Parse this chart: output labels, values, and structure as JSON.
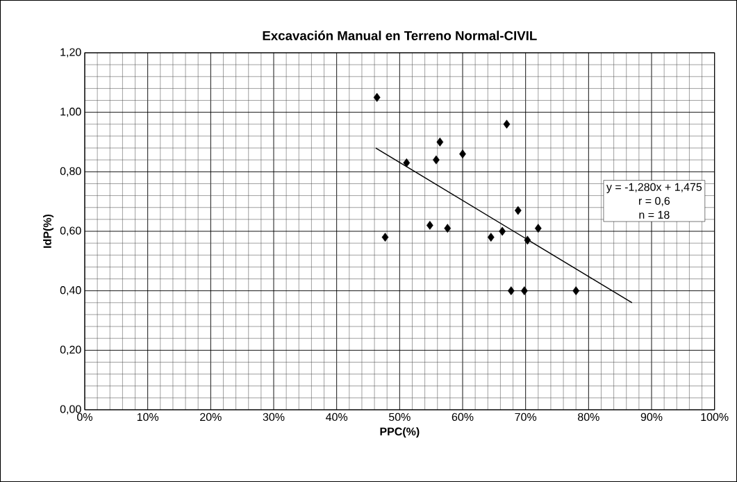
{
  "chart_data": {
    "type": "scatter",
    "title": "Excavación Manual en Terreno Normal-CIVIL",
    "xlabel": "PPC(%)",
    "ylabel": "IdP(%)",
    "series": [
      {
        "color": "#000000",
        "marker": "diamond",
        "x": [
          46.4,
          67.0,
          56.4,
          60.0,
          55.8,
          51.1,
          68.8,
          54.8,
          57.6,
          47.7,
          64.5,
          66.3,
          72.0,
          70.3,
          67.7,
          69.8,
          78.0
        ],
        "values": [
          1.05,
          0.96,
          0.9,
          0.86,
          0.84,
          0.83,
          0.67,
          0.62,
          0.61,
          0.58,
          0.58,
          0.6,
          0.61,
          0.57,
          0.4,
          0.4,
          0.4
        ]
      },
      {
        "type": "line",
        "color": "#000000",
        "x": [
          46.2,
          86.9
        ],
        "values": [
          0.88,
          0.36
        ]
      }
    ],
    "xlim": [
      0,
      100
    ],
    "ylim": [
      0,
      1.2
    ],
    "xticks": [
      {
        "value": 0,
        "label": "0%"
      },
      {
        "value": 10,
        "label": "10%"
      },
      {
        "value": 20,
        "label": "20%"
      },
      {
        "value": 30,
        "label": "30%"
      },
      {
        "value": 40,
        "label": "40%"
      },
      {
        "value": 50,
        "label": "50%"
      },
      {
        "value": 60,
        "label": "60%"
      },
      {
        "value": 70,
        "label": "70%"
      },
      {
        "value": 80,
        "label": "80%"
      },
      {
        "value": 90,
        "label": "90%"
      },
      {
        "value": 100,
        "label": "100%"
      }
    ],
    "yticks": [
      {
        "value": 0,
        "label": "0,00"
      },
      {
        "value": 0.2,
        "label": "0,20"
      },
      {
        "value": 0.4,
        "label": "0,40"
      },
      {
        "value": 0.6,
        "label": "0,60"
      },
      {
        "value": 0.8,
        "label": "0,80"
      },
      {
        "value": 1.0,
        "label": "1,00"
      },
      {
        "value": 1.2,
        "label": "1,20"
      }
    ],
    "grid": true,
    "annotations": [
      "y = -1,280x + 1,475",
      "r = 0,6",
      "n = 18"
    ]
  }
}
